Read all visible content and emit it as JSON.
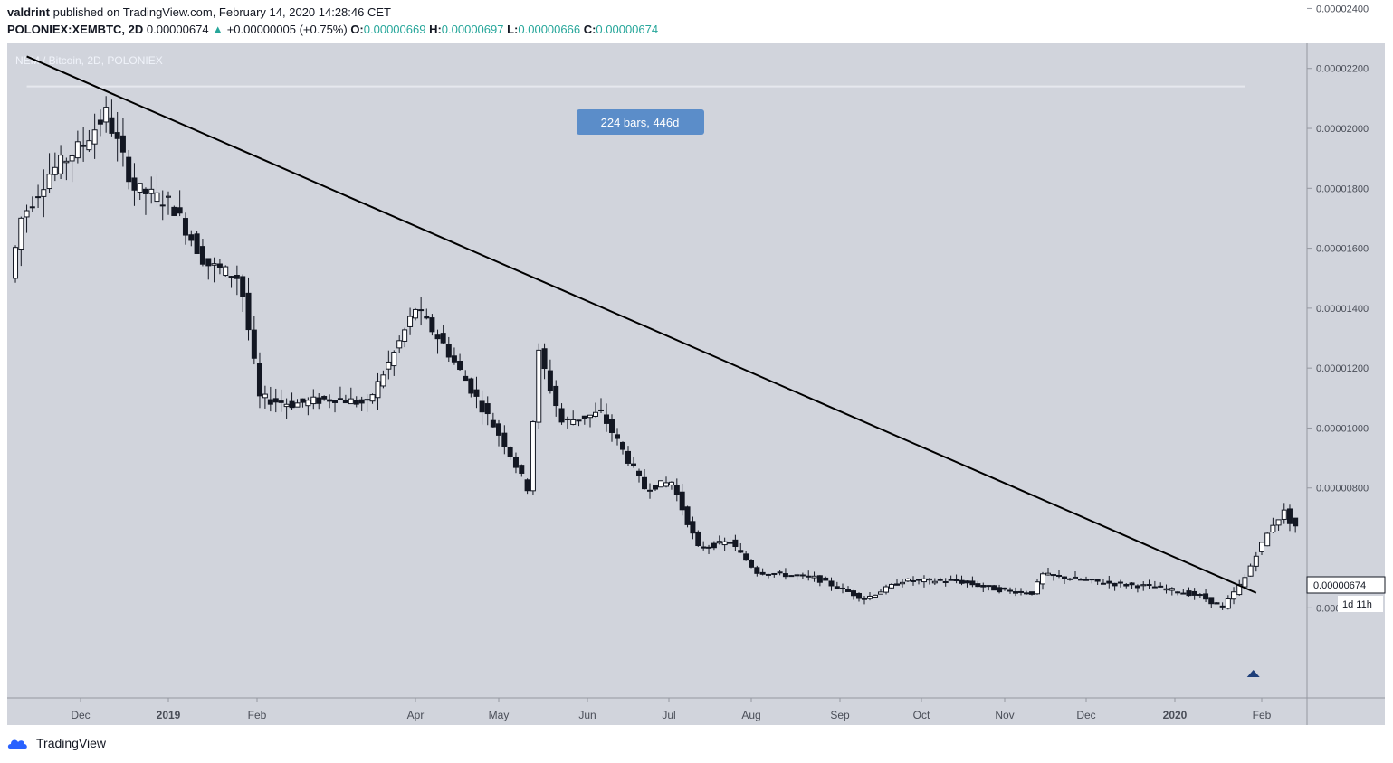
{
  "header": {
    "author": "valdrint",
    "published_text": "published on TradingView.com, February 14, 2020 14:28:46 CET",
    "symbol": "POLONIEX:XEMBTC, 2D",
    "last_price": "0.00000674",
    "change_arrow": "▲",
    "change": "+0.00000005 (+0.75%)",
    "o_label": "O:",
    "o_value": "0.00000669",
    "h_label": "H:",
    "h_value": "0.00000697",
    "l_label": "L:",
    "l_value": "0.00000666",
    "c_label": "C:",
    "c_value": "0.00000674"
  },
  "footer": {
    "brand": "TradingView"
  },
  "chart_data": {
    "type": "candlestick",
    "title": "NEM / Bitcoin, 2D, POLONIEX",
    "ylim": [
      3.2e-06,
      2.5e-06
    ],
    "y_ticks": [
      2.4e-05,
      2.2e-05,
      2e-05,
      1.8e-05,
      1.6e-05,
      1.4e-05,
      1.2e-05,
      1e-05,
      8e-06,
      4e-06
    ],
    "y_tick_labels": [
      "0.00002400",
      "0.00002200",
      "0.00002000",
      "0.00001800",
      "0.00001600",
      "0.00001400",
      "0.00001200",
      "0.00001000",
      "0.00000800",
      "0.00000400"
    ],
    "x_tick_labels": [
      "Dec",
      "2019",
      "Feb",
      "Apr",
      "May",
      "Jun",
      "Jul",
      "Aug",
      "Sep",
      "Oct",
      "Nov",
      "Dec",
      "2020",
      "Feb"
    ],
    "x_tick_dates": [
      "2018-12-01",
      "2019-01-01",
      "2019-02-01",
      "2019-04-01",
      "2019-05-01",
      "2019-06-01",
      "2019-07-01",
      "2019-08-01",
      "2019-09-01",
      "2019-10-01",
      "2019-11-01",
      "2019-12-01",
      "2020-01-01",
      "2020-02-01"
    ],
    "price_label": "0.00000674",
    "countdown_label": "1d 11h",
    "measure_label": "224 bars, 446d",
    "measure_level": 2.14e-05,
    "trendline": {
      "start": [
        "2018-11-12",
        2.24e-05
      ],
      "end": [
        "2020-01-30",
        4.5e-06
      ]
    },
    "anchors": [
      [
        "2018-11-08",
        1.5e-05
      ],
      [
        "2018-11-12",
        1.7e-05
      ],
      [
        "2018-11-22",
        1.85e-05
      ],
      [
        "2018-12-04",
        1.95e-05
      ],
      [
        "2018-12-12",
        2.05e-05
      ],
      [
        "2018-12-22",
        1.8e-05
      ],
      [
        "2019-01-04",
        1.75e-05
      ],
      [
        "2019-01-16",
        1.55e-05
      ],
      [
        "2019-01-28",
        1.5e-05
      ],
      [
        "2019-02-04",
        1.1e-05
      ],
      [
        "2019-02-16",
        1.08e-05
      ],
      [
        "2019-03-04",
        1.1e-05
      ],
      [
        "2019-03-16",
        1.08e-05
      ],
      [
        "2019-03-26",
        1.25e-05
      ],
      [
        "2019-04-03",
        1.4e-05
      ],
      [
        "2019-04-13",
        1.28e-05
      ],
      [
        "2019-04-25",
        1.1e-05
      ],
      [
        "2019-05-05",
        9.5e-06
      ],
      [
        "2019-05-13",
        8e-06
      ],
      [
        "2019-05-17",
        1.25e-05
      ],
      [
        "2019-05-25",
        1.02e-05
      ],
      [
        "2019-06-08",
        1.05e-05
      ],
      [
        "2019-06-24",
        8e-06
      ],
      [
        "2019-07-04",
        8.2e-06
      ],
      [
        "2019-07-14",
        6e-06
      ],
      [
        "2019-07-26",
        6.2e-06
      ],
      [
        "2019-08-05",
        5.2e-06
      ],
      [
        "2019-08-25",
        5e-06
      ],
      [
        "2019-09-12",
        4.3e-06
      ],
      [
        "2019-09-26",
        4.9e-06
      ],
      [
        "2019-10-16",
        4.9e-06
      ],
      [
        "2019-11-01",
        4.6e-06
      ],
      [
        "2019-11-13",
        4.5e-06
      ],
      [
        "2019-11-17",
        5.1e-06
      ],
      [
        "2019-12-13",
        4.8e-06
      ],
      [
        "2019-12-27",
        4.7e-06
      ],
      [
        "2020-01-12",
        4.4e-06
      ],
      [
        "2020-01-20",
        4e-06
      ],
      [
        "2020-01-24",
        4.5e-06
      ],
      [
        "2020-01-28",
        5e-06
      ],
      [
        "2020-02-01",
        5.8e-06
      ],
      [
        "2020-02-07",
        6.8e-06
      ],
      [
        "2020-02-11",
        7.2e-06
      ],
      [
        "2020-02-14",
        6.74e-06
      ]
    ],
    "colors": {
      "plot_bg": "#d1d4dc",
      "up_fill": "#ffffff",
      "down_fill": "#131722",
      "trendline": "#000000",
      "measure_line": "#e6e8ee",
      "measure_box": "#5b8dc9",
      "signal_marker": "#1e3f7a",
      "axis_text": "#4a4e58",
      "brand": "#2962ff"
    }
  }
}
